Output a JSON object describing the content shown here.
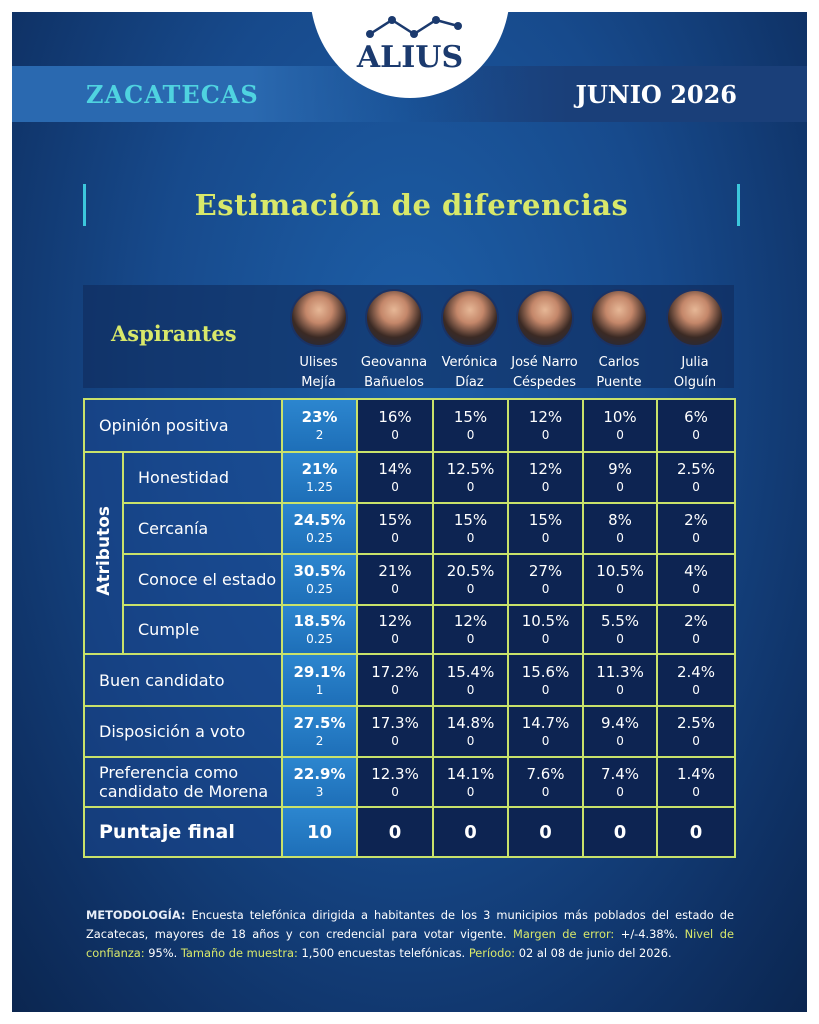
{
  "header": {
    "logo": "ALIUS",
    "state": "ZACATECAS",
    "date": "JUNIO 2026"
  },
  "title": "Estimación de diferencias",
  "table": {
    "header_label": "Aspirantes",
    "candidates": [
      [
        "Ulises",
        "Mejía"
      ],
      [
        "Geovanna",
        "Bañuelos"
      ],
      [
        "Verónica",
        "Díaz"
      ],
      [
        "José Narro",
        "Céspedes"
      ],
      [
        "Carlos",
        "Puente"
      ],
      [
        "Julia",
        "Olguín"
      ]
    ],
    "rows": [
      {
        "label": [
          "Opinión positiva"
        ],
        "cells": [
          [
            "23%",
            "2"
          ],
          [
            "16%",
            "0"
          ],
          [
            "15%",
            "0"
          ],
          [
            "12%",
            "0"
          ],
          [
            "10%",
            "0"
          ],
          [
            "6%",
            "0"
          ]
        ]
      },
      {
        "label": "Atributos",
        "rows": [
          {
            "label": [
              "Honestidad"
            ],
            "cells": [
              [
                "21%",
                "1.25"
              ],
              [
                "14%",
                "0"
              ],
              [
                "12.5%",
                "0"
              ],
              [
                "12%",
                "0"
              ],
              [
                "9%",
                "0"
              ],
              [
                "2.5%",
                "0"
              ]
            ]
          },
          {
            "label": [
              "Cercanía"
            ],
            "cells": [
              [
                "24.5%",
                "0.25"
              ],
              [
                "15%",
                "0"
              ],
              [
                "15%",
                "0"
              ],
              [
                "15%",
                "0"
              ],
              [
                "8%",
                "0"
              ],
              [
                "2%",
                "0"
              ]
            ]
          },
          {
            "label": [
              "Conoce el estado"
            ],
            "cells": [
              [
                "30.5%",
                "0.25"
              ],
              [
                "21%",
                "0"
              ],
              [
                "20.5%",
                "0"
              ],
              [
                "27%",
                "0"
              ],
              [
                "10.5%",
                "0"
              ],
              [
                "4%",
                "0"
              ]
            ]
          },
          {
            "label": [
              "Cumple"
            ],
            "cells": [
              [
                "18.5%",
                "0.25"
              ],
              [
                "12%",
                "0"
              ],
              [
                "12%",
                "0"
              ],
              [
                "10.5%",
                "0"
              ],
              [
                "5.5%",
                "0"
              ],
              [
                "2%",
                "0"
              ]
            ]
          }
        ]
      },
      {
        "label": [
          "Buen candidato"
        ],
        "cells": [
          [
            "29.1%",
            "1"
          ],
          [
            "17.2%",
            "0"
          ],
          [
            "15.4%",
            "0"
          ],
          [
            "15.6%",
            "0"
          ],
          [
            "11.3%",
            "0"
          ],
          [
            "2.4%",
            "0"
          ]
        ]
      },
      {
        "label": [
          "Disposición a voto"
        ],
        "cells": [
          [
            "27.5%",
            "2"
          ],
          [
            "17.3%",
            "0"
          ],
          [
            "14.8%",
            "0"
          ],
          [
            "14.7%",
            "0"
          ],
          [
            "9.4%",
            "0"
          ],
          [
            "2.5%",
            "0"
          ]
        ]
      },
      {
        "label": [
          "Preferencia como",
          "candidato de Morena"
        ],
        "cells": [
          [
            "22.9%",
            "3"
          ],
          [
            "12.3%",
            "0"
          ],
          [
            "14.1%",
            "0"
          ],
          [
            "7.6%",
            "0"
          ],
          [
            "7.4%",
            "0"
          ],
          [
            "1.4%",
            "0"
          ]
        ]
      }
    ],
    "final": {
      "label": "Puntaje final",
      "cells": [
        "10",
        "0",
        "0",
        "0",
        "0",
        "0"
      ]
    }
  },
  "footer": {
    "methodology_label": "METODOLOGÍA:",
    "methodology": "Encuesta telefónica dirigida a habitantes de los 3 municipios más poblados del estado de Zacatecas, mayores de 18 años y con credencial para votar vigente.",
    "margin_label": "Margen de error:",
    "margin": "+/-4.38%.",
    "confidence_label": "Nivel de confianza:",
    "confidence": "95%.",
    "sample_label": "Tamaño de muestra:",
    "sample": "1,500 encuestas telefónicas.",
    "period_label": "Período:",
    "period": "02 al 08 de junio del 2026."
  }
}
